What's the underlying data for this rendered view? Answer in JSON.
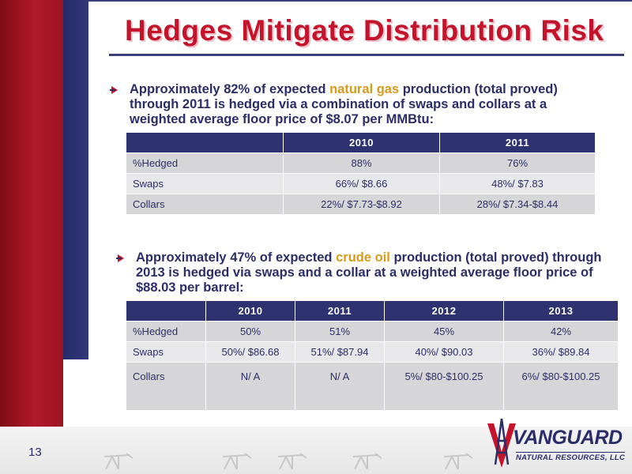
{
  "title": "Hedges Mitigate Distribution Risk",
  "page_number": "13",
  "bullet1": {
    "before": "Approximately 82% of expected ",
    "highlight": "natural gas",
    "after": " production (total proved) through 2011 is hedged via a combination of swaps and collars at a weighted average floor price of $8.07 per MMBtu:"
  },
  "gas_table": {
    "headers": [
      "",
      "2010",
      "2011"
    ],
    "rows": [
      [
        "%Hedged",
        "88%",
        "76%"
      ],
      [
        "Swaps",
        "66%/ $8.66",
        "48%/ $7.83"
      ],
      [
        "Collars",
        "22%/ $7.73-$8.92",
        "28%/ $7.34-$8.44"
      ]
    ]
  },
  "bullet2": {
    "before": "Approximately 47% of expected ",
    "highlight": "crude oil",
    "after": " production (total proved) through 2013 is hedged via swaps and a collar at a weighted average floor price of $88.03 per barrel:"
  },
  "oil_table": {
    "headers": [
      "",
      "2010",
      "2011",
      "2012",
      "2013"
    ],
    "rows": [
      [
        "%Hedged",
        "50%",
        "51%",
        "45%",
        "42%"
      ],
      [
        "Swaps",
        "50%/ $86.68",
        "51%/ $87.94",
        "40%/ $90.03",
        "36%/ $89.84"
      ],
      [
        "Collars",
        "N/ A",
        "N/ A",
        "5%/ $80-$100.25",
        "6%/ $80-$100.25"
      ]
    ]
  },
  "logo": {
    "name": "VANGUARD",
    "sub": "NATURAL RESOURCES, LLC"
  },
  "colors": {
    "title_red": "#c4142c",
    "navy": "#2e3271",
    "highlight_gold": "#d79b1c",
    "sidebar_red": "#b2192a"
  }
}
